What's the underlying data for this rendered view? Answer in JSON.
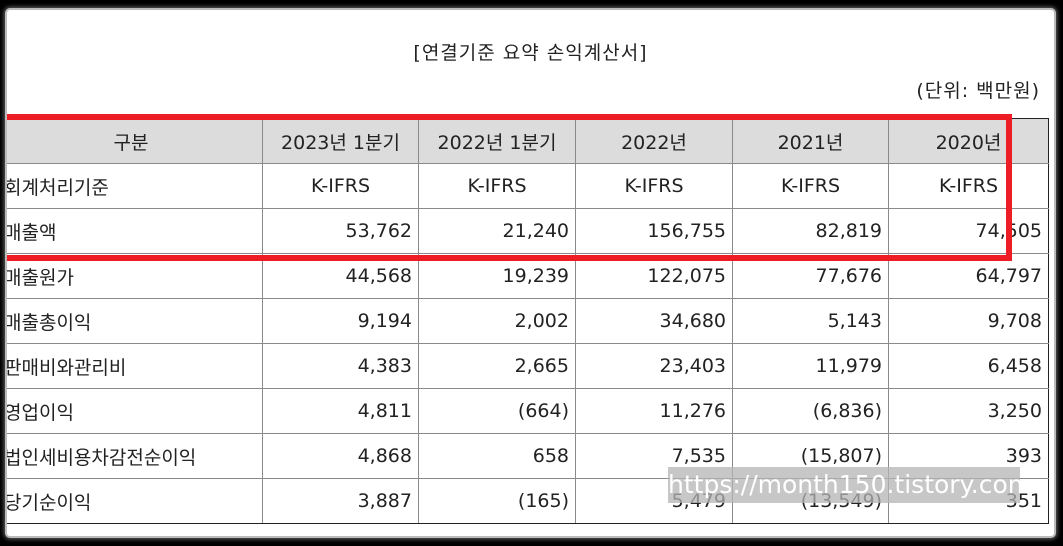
{
  "document": {
    "title": "[연결기준 요약 손익계산서]",
    "unit": "(단위: 백만원)"
  },
  "table": {
    "headers": [
      "구분",
      "2023년 1분기",
      "2022년 1분기",
      "2022년",
      "2021년",
      "2020년"
    ],
    "rows": [
      {
        "label": "회계처리기준",
        "values": [
          "K-IFRS",
          "K-IFRS",
          "K-IFRS",
          "K-IFRS",
          "K-IFRS"
        ]
      },
      {
        "label": "매출액",
        "values": [
          "53,762",
          "21,240",
          "156,755",
          "82,819",
          "74,505"
        ]
      },
      {
        "label": "매출원가",
        "values": [
          "44,568",
          "19,239",
          "122,075",
          "77,676",
          "64,797"
        ]
      },
      {
        "label": "매출총이익",
        "values": [
          "9,194",
          "2,002",
          "34,680",
          "5,143",
          "9,708"
        ]
      },
      {
        "label": "판매비와관리비",
        "values": [
          "4,383",
          "2,665",
          "23,403",
          "11,979",
          "6,458"
        ]
      },
      {
        "label": "영업이익",
        "values": [
          "4,811",
          "(664)",
          "11,276",
          "(6,836)",
          "3,250"
        ]
      },
      {
        "label": "법인세비용차감전순이익",
        "values": [
          "4,868",
          "658",
          "7,535",
          "(15,807)",
          "393"
        ]
      },
      {
        "label": "당기순이익",
        "values": [
          "3,887",
          "(165)",
          "5,479",
          "(13,549)",
          "351"
        ]
      }
    ]
  },
  "annotation": {
    "highlight_color": "#ee1c25",
    "highlighted_rows": [
      "header",
      "회계처리기준",
      "매출액"
    ]
  },
  "watermark": {
    "text": "https://month150.tistory.com"
  }
}
